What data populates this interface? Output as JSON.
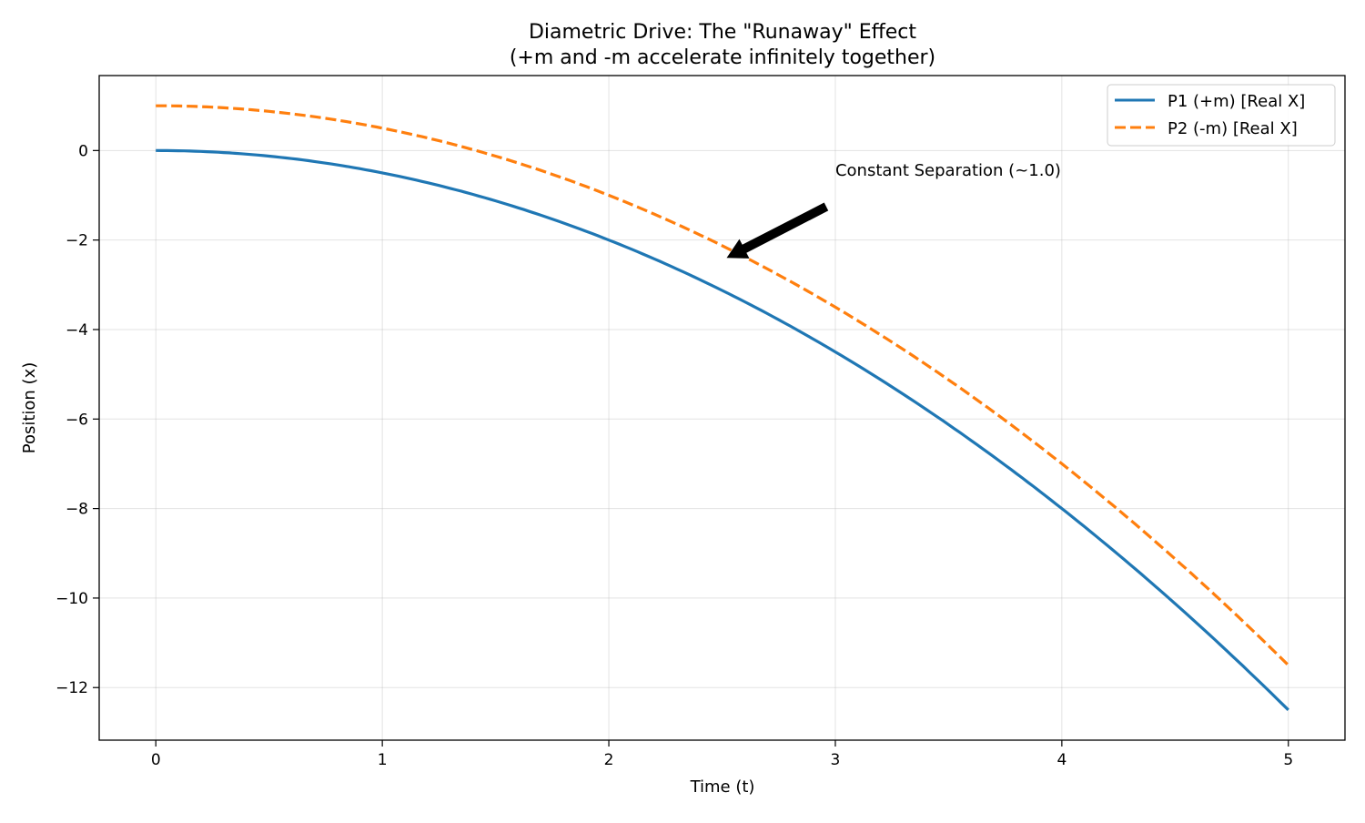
{
  "chart_data": {
    "type": "line",
    "title": "Diametric Drive: The \"Runaway\" Effect",
    "subtitle": "(+m and -m accelerate infinitely together)",
    "xlabel": "Time (t)",
    "ylabel": "Position (x)",
    "xlim": [
      -0.25,
      5.25
    ],
    "ylim": [
      -13.175,
      1.675
    ],
    "xticks": [
      0,
      1,
      2,
      3,
      4,
      5
    ],
    "yticks": [
      0,
      -2,
      -4,
      -6,
      -8,
      -10,
      -12
    ],
    "xtick_labels": [
      "0",
      "1",
      "2",
      "3",
      "4",
      "5"
    ],
    "ytick_labels": [
      "0",
      "−2",
      "−4",
      "−6",
      "−8",
      "−10",
      "−12"
    ],
    "grid": true,
    "legend_position": "top-right",
    "series": [
      {
        "name": "P1 (+m) [Real X]",
        "color": "#1f77b4",
        "style": "solid",
        "formula": "x = -0.5 t^2",
        "x_range": [
          0,
          5
        ]
      },
      {
        "name": "P2 (-m) [Real X]",
        "color": "#ff7f0e",
        "style": "dashed",
        "formula": "x = 1 - 0.5 t^2",
        "x_range": [
          0,
          5
        ]
      }
    ],
    "annotation": {
      "text": "Constant Separation (~1.0)",
      "xy": [
        2.52,
        -2.4
      ],
      "xytext": [
        3.0,
        -0.5
      ]
    }
  }
}
